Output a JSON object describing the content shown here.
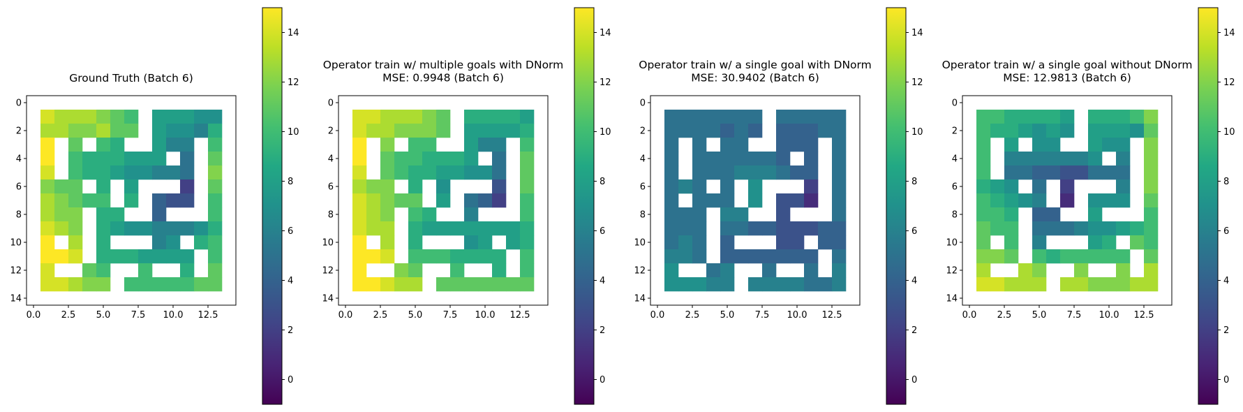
{
  "chart_data": [
    {
      "type": "heatmap",
      "title": "Ground Truth (Batch 6)",
      "xticks": [
        "0.0",
        "2.5",
        "5.0",
        "7.5",
        "10.0",
        "12.5"
      ],
      "yticks": [
        "0",
        "2",
        "4",
        "6",
        "8",
        "10",
        "12",
        "14"
      ],
      "xlim": [
        -0.5,
        14.5
      ],
      "ylim": [
        14.5,
        -0.5
      ],
      "colorbar": {
        "ticks": [
          "0",
          "2",
          "4",
          "6",
          "8",
          "10",
          "12",
          "14"
        ],
        "range": [
          -1,
          15
        ],
        "colormap": "viridis"
      },
      "nan_marker": -1,
      "grid": [
        [
          -1,
          -1,
          -1,
          -1,
          -1,
          -1,
          -1,
          -1,
          -1,
          -1,
          -1,
          -1,
          -1,
          -1,
          -1
        ],
        [
          -1,
          14,
          13,
          13,
          13,
          12,
          11,
          10,
          -1,
          8,
          8,
          8,
          7,
          7,
          -1
        ],
        [
          -1,
          13,
          13,
          12,
          12,
          13,
          11,
          11,
          -1,
          8,
          7,
          7,
          6,
          9,
          -1
        ],
        [
          -1,
          15,
          -1,
          11,
          -1,
          10,
          9,
          -1,
          -1,
          8,
          6,
          6,
          -1,
          10,
          -1
        ],
        [
          -1,
          15,
          -1,
          10,
          9,
          9,
          9,
          8,
          8,
          8,
          -1,
          5,
          -1,
          11,
          -1
        ],
        [
          -1,
          14,
          -1,
          10,
          9,
          9,
          8,
          7,
          7,
          6,
          6,
          5,
          -1,
          12,
          -1
        ],
        [
          -1,
          12,
          11,
          11,
          -1,
          9,
          -1,
          8,
          -1,
          -1,
          -1,
          2,
          -1,
          11,
          -1
        ],
        [
          -1,
          13,
          12,
          11,
          10,
          10,
          -1,
          9,
          -1,
          4,
          3,
          3,
          -1,
          10,
          -1
        ],
        [
          -1,
          13,
          12,
          12,
          -1,
          9,
          9,
          -1,
          -1,
          4,
          -1,
          -1,
          -1,
          10,
          -1
        ],
        [
          -1,
          14,
          13,
          12,
          -1,
          9,
          8,
          7,
          7,
          6,
          6,
          6,
          7,
          9,
          -1
        ],
        [
          -1,
          15,
          -1,
          13,
          -1,
          9,
          -1,
          -1,
          -1,
          6,
          7,
          -1,
          9,
          10,
          -1
        ],
        [
          -1,
          15,
          15,
          14,
          -1,
          9,
          9,
          9,
          8,
          8,
          8,
          8,
          -1,
          10,
          -1
        ],
        [
          -1,
          14,
          -1,
          -1,
          11,
          10,
          -1,
          -1,
          10,
          -1,
          -1,
          9,
          -1,
          11,
          -1
        ],
        [
          -1,
          14,
          14,
          13,
          12,
          12,
          -1,
          10,
          10,
          10,
          10,
          10,
          11,
          11,
          -1
        ],
        [
          -1,
          -1,
          -1,
          -1,
          -1,
          -1,
          -1,
          -1,
          -1,
          -1,
          -1,
          -1,
          -1,
          -1,
          -1
        ]
      ]
    },
    {
      "type": "heatmap",
      "title": "Operator train w/ multiple goals with DNorm\nMSE: 0.9948 (Batch 6)",
      "xticks": [
        "0.0",
        "2.5",
        "5.0",
        "7.5",
        "10.0",
        "12.5"
      ],
      "yticks": [
        "0",
        "2",
        "4",
        "6",
        "8",
        "10",
        "12",
        "14"
      ],
      "xlim": [
        -0.5,
        14.5
      ],
      "ylim": [
        14.5,
        -0.5
      ],
      "colorbar": {
        "ticks": [
          "0",
          "2",
          "4",
          "6",
          "8",
          "10",
          "12",
          "14"
        ],
        "range": [
          -1,
          15
        ],
        "colormap": "viridis"
      },
      "nan_marker": -1,
      "grid": [
        [
          -1,
          -1,
          -1,
          -1,
          -1,
          -1,
          -1,
          -1,
          -1,
          -1,
          -1,
          -1,
          -1,
          -1,
          -1
        ],
        [
          -1,
          14,
          14,
          13,
          13,
          13,
          12,
          11,
          -1,
          9,
          9,
          9,
          9,
          8,
          -1
        ],
        [
          -1,
          14,
          13,
          13,
          12,
          12,
          12,
          11,
          -1,
          8,
          8,
          8,
          8,
          9,
          -1
        ],
        [
          -1,
          15,
          -1,
          12,
          -1,
          10,
          10,
          -1,
          -1,
          8,
          6,
          6,
          -1,
          10,
          -1
        ],
        [
          -1,
          15,
          -1,
          11,
          10,
          10,
          9,
          9,
          9,
          8,
          -1,
          5,
          -1,
          11,
          -1
        ],
        [
          -1,
          14,
          -1,
          11,
          10,
          9,
          9,
          8,
          8,
          7,
          7,
          5,
          -1,
          11,
          -1
        ],
        [
          -1,
          13,
          12,
          12,
          -1,
          9,
          -1,
          7,
          -1,
          -1,
          -1,
          3,
          -1,
          11,
          -1
        ],
        [
          -1,
          14,
          13,
          12,
          11,
          11,
          -1,
          8,
          -1,
          5,
          4,
          2,
          -1,
          10,
          -1
        ],
        [
          -1,
          14,
          13,
          12,
          -1,
          10,
          9,
          -1,
          -1,
          6,
          -1,
          -1,
          -1,
          10,
          -1
        ],
        [
          -1,
          14,
          13,
          13,
          -1,
          9,
          8,
          8,
          8,
          8,
          8,
          8,
          8,
          9,
          -1
        ],
        [
          -1,
          15,
          -1,
          13,
          -1,
          9,
          -1,
          -1,
          -1,
          7,
          8,
          -1,
          8,
          9,
          -1
        ],
        [
          -1,
          15,
          15,
          14,
          -1,
          10,
          10,
          10,
          9,
          9,
          9,
          9,
          -1,
          10,
          -1
        ],
        [
          -1,
          15,
          -1,
          -1,
          12,
          11,
          -1,
          -1,
          10,
          -1,
          -1,
          9,
          -1,
          10,
          -1
        ],
        [
          -1,
          15,
          15,
          14,
          13,
          13,
          -1,
          11,
          11,
          11,
          11,
          11,
          11,
          11,
          -1
        ],
        [
          -1,
          -1,
          -1,
          -1,
          -1,
          -1,
          -1,
          -1,
          -1,
          -1,
          -1,
          -1,
          -1,
          -1,
          -1
        ]
      ]
    },
    {
      "type": "heatmap",
      "title": "Operator train w/ a single goal with DNorm\nMSE: 30.9402 (Batch 6)",
      "xticks": [
        "0.0",
        "2.5",
        "5.0",
        "7.5",
        "10.0",
        "12.5"
      ],
      "yticks": [
        "0",
        "2",
        "4",
        "6",
        "8",
        "10",
        "12",
        "14"
      ],
      "xlim": [
        -0.5,
        14.5
      ],
      "ylim": [
        14.5,
        -0.5
      ],
      "colorbar": {
        "ticks": [
          "0",
          "2",
          "4",
          "6",
          "8",
          "10",
          "12",
          "14"
        ],
        "range": [
          -1,
          15
        ],
        "colormap": "viridis"
      },
      "nan_marker": -1,
      "grid": [
        [
          -1,
          -1,
          -1,
          -1,
          -1,
          -1,
          -1,
          -1,
          -1,
          -1,
          -1,
          -1,
          -1,
          -1,
          -1
        ],
        [
          -1,
          5,
          5,
          5,
          5,
          5,
          5,
          5,
          -1,
          5,
          5,
          5,
          5,
          5,
          -1
        ],
        [
          -1,
          5,
          5,
          5,
          5,
          4,
          5,
          4,
          -1,
          4,
          4,
          4,
          5,
          5,
          -1
        ],
        [
          -1,
          5,
          -1,
          5,
          -1,
          5,
          5,
          -1,
          -1,
          4,
          4,
          4,
          -1,
          5,
          -1
        ],
        [
          -1,
          5,
          -1,
          5,
          5,
          5,
          5,
          5,
          5,
          4,
          -1,
          4,
          -1,
          5,
          -1
        ],
        [
          -1,
          5,
          -1,
          5,
          5,
          5,
          6,
          6,
          6,
          5,
          4,
          4,
          -1,
          5,
          -1
        ],
        [
          -1,
          5,
          6,
          5,
          -1,
          5,
          -1,
          7,
          -1,
          -1,
          -1,
          2,
          -1,
          5,
          -1
        ],
        [
          -1,
          5,
          -1,
          5,
          5,
          5,
          -1,
          7,
          -1,
          3,
          3,
          1,
          -1,
          5,
          -1
        ],
        [
          -1,
          5,
          5,
          5,
          -1,
          6,
          6,
          -1,
          -1,
          3,
          -1,
          -1,
          -1,
          5,
          -1
        ],
        [
          -1,
          5,
          5,
          5,
          -1,
          5,
          5,
          4,
          4,
          3,
          3,
          3,
          4,
          4,
          -1
        ],
        [
          -1,
          5,
          6,
          5,
          -1,
          4,
          -1,
          -1,
          -1,
          3,
          3,
          -1,
          4,
          4,
          -1
        ],
        [
          -1,
          6,
          6,
          5,
          -1,
          4,
          4,
          4,
          4,
          4,
          4,
          4,
          -1,
          5,
          -1
        ],
        [
          -1,
          7,
          -1,
          -1,
          5,
          6,
          -1,
          -1,
          5,
          -1,
          -1,
          5,
          -1,
          6,
          -1
        ],
        [
          -1,
          7,
          7,
          7,
          6,
          6,
          -1,
          6,
          6,
          6,
          6,
          5,
          5,
          6,
          -1
        ],
        [
          -1,
          -1,
          -1,
          -1,
          -1,
          -1,
          -1,
          -1,
          -1,
          -1,
          -1,
          -1,
          -1,
          -1,
          -1
        ]
      ]
    },
    {
      "type": "heatmap",
      "title": "Operator train w/ a single goal without DNorm\nMSE: 12.9813 (Batch 6)",
      "xticks": [
        "0.0",
        "2.5",
        "5.0",
        "7.5",
        "10.0",
        "12.5"
      ],
      "yticks": [
        "0",
        "2",
        "4",
        "6",
        "8",
        "10",
        "12",
        "14"
      ],
      "xlim": [
        -0.5,
        14.5
      ],
      "ylim": [
        14.5,
        -0.5
      ],
      "colorbar": {
        "ticks": [
          "0",
          "2",
          "4",
          "6",
          "8",
          "10",
          "12",
          "14"
        ],
        "range": [
          -1,
          15
        ],
        "colormap": "viridis"
      },
      "nan_marker": -1,
      "grid": [
        [
          -1,
          -1,
          -1,
          -1,
          -1,
          -1,
          -1,
          -1,
          -1,
          -1,
          -1,
          -1,
          -1,
          -1,
          -1
        ],
        [
          -1,
          10,
          10,
          9,
          9,
          9,
          9,
          8,
          -1,
          9,
          9,
          9,
          10,
          12,
          -1
        ],
        [
          -1,
          10,
          9,
          9,
          8,
          7,
          8,
          7,
          -1,
          8,
          8,
          8,
          7,
          11,
          -1
        ],
        [
          -1,
          10,
          -1,
          8,
          -1,
          7,
          7,
          -1,
          -1,
          8,
          7,
          7,
          -1,
          12,
          -1
        ],
        [
          -1,
          10,
          -1,
          6,
          6,
          6,
          6,
          6,
          6,
          7,
          -1,
          6,
          -1,
          12,
          -1
        ],
        [
          -1,
          10,
          -1,
          5,
          5,
          4,
          4,
          3,
          3,
          5,
          5,
          5,
          -1,
          12,
          -1
        ],
        [
          -1,
          9,
          8,
          7,
          -1,
          5,
          -1,
          2,
          -1,
          -1,
          -1,
          6,
          -1,
          12,
          -1
        ],
        [
          -1,
          10,
          9,
          8,
          7,
          6,
          -1,
          1,
          -1,
          7,
          7,
          7,
          -1,
          11,
          -1
        ],
        [
          -1,
          10,
          10,
          9,
          -1,
          4,
          4,
          -1,
          -1,
          8,
          -1,
          -1,
          -1,
          10,
          -1
        ],
        [
          -1,
          11,
          10,
          10,
          -1,
          5,
          5,
          5,
          6,
          7,
          7,
          8,
          9,
          10,
          -1
        ],
        [
          -1,
          11,
          -1,
          10,
          -1,
          6,
          -1,
          -1,
          -1,
          8,
          9,
          -1,
          11,
          10,
          -1
        ],
        [
          -1,
          12,
          12,
          11,
          -1,
          10,
          9,
          10,
          10,
          10,
          10,
          10,
          -1,
          11,
          -1
        ],
        [
          -1,
          13,
          -1,
          -1,
          13,
          12,
          -1,
          -1,
          12,
          -1,
          -1,
          12,
          -1,
          13,
          -1
        ],
        [
          -1,
          14,
          14,
          13,
          13,
          13,
          -1,
          13,
          13,
          12,
          12,
          12,
          13,
          13,
          -1
        ],
        [
          -1,
          -1,
          -1,
          -1,
          -1,
          -1,
          -1,
          -1,
          -1,
          -1,
          -1,
          -1,
          -1,
          -1,
          -1
        ]
      ]
    }
  ]
}
